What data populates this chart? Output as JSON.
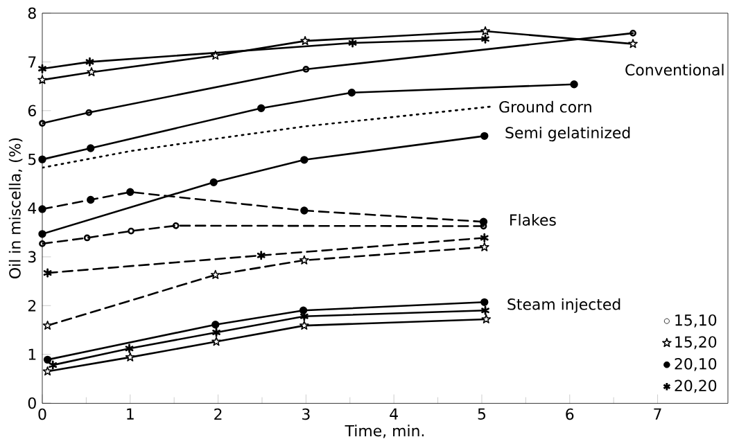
{
  "chart_data": {
    "type": "line",
    "xlabel": "Time, min.",
    "ylabel": "Oil in miscella, (%)",
    "xlim": [
      0,
      7.8
    ],
    "ylim": [
      0,
      8
    ],
    "xticks": [
      0,
      1,
      2,
      3,
      4,
      5,
      6,
      7
    ],
    "yticks": [
      0,
      1,
      2,
      3,
      4,
      5,
      6,
      7,
      8
    ],
    "grid": false,
    "legend": "bottom right",
    "series": [
      {
        "name": "15,10",
        "color": "#000000",
        "line_style": "solid",
        "marker": "diamond",
        "x": [
          0,
          0.53,
          3.0,
          6.72
        ],
        "values": [
          5.74,
          5.96,
          6.85,
          7.59
        ]
      },
      {
        "name": "15,20",
        "color": "#000000",
        "line_style": "solid",
        "marker": "star",
        "x": [
          0,
          0.56,
          1.97,
          2.99,
          5.04,
          6.72
        ],
        "values": [
          6.63,
          6.79,
          7.13,
          7.43,
          7.63,
          7.37
        ]
      },
      {
        "name": "20,10",
        "color": "#000000",
        "line_style": "solid",
        "marker": "circle",
        "x": [
          0,
          0.55,
          2.49,
          3.52,
          6.05
        ],
        "values": [
          5.0,
          5.23,
          6.05,
          6.37,
          6.54
        ]
      },
      {
        "name": "20,20",
        "color": "#000000",
        "line_style": "solid",
        "marker": "cross",
        "x": [
          0,
          0.54,
          3.53,
          5.04
        ],
        "values": [
          6.86,
          7.0,
          7.39,
          7.47
        ]
      },
      {
        "color": "#000000",
        "line_style": "dotted",
        "marker": "none",
        "x": [
          0,
          1,
          2,
          3,
          4,
          5.09
        ],
        "values": [
          4.83,
          5.17,
          5.43,
          5.68,
          5.87,
          6.08
        ]
      },
      {
        "color": "#000000",
        "line_style": "solid",
        "marker": "circle",
        "x": [
          0,
          1.95,
          2.98,
          5.03
        ],
        "values": [
          3.47,
          4.53,
          4.99,
          5.48
        ]
      },
      {
        "color": "#000000",
        "line_style": "dashed",
        "marker": "circle",
        "x": [
          0,
          0.55,
          1.0,
          2.98,
          5.02
        ],
        "values": [
          3.98,
          4.17,
          4.33,
          3.95,
          3.72
        ]
      },
      {
        "color": "#000000",
        "line_style": "dashed",
        "marker": "diamond",
        "x": [
          0,
          0.51,
          1.01,
          1.52,
          5.02
        ],
        "values": [
          3.27,
          3.39,
          3.53,
          3.64,
          3.63
        ]
      },
      {
        "color": "#000000",
        "line_style": "dashed",
        "marker": "cross",
        "x": [
          0.06,
          2.49,
          5.03
        ],
        "values": [
          2.67,
          3.03,
          3.39
        ]
      },
      {
        "color": "#000000",
        "line_style": "dashed",
        "marker": "star",
        "x": [
          0.06,
          1.97,
          2.98,
          5.03
        ],
        "values": [
          1.59,
          2.63,
          2.93,
          3.2
        ]
      },
      {
        "color": "#000000",
        "line_style": "solid",
        "marker": "circle",
        "x": [
          0.06,
          1.97,
          2.97,
          5.03
        ],
        "values": [
          0.89,
          1.61,
          1.9,
          2.07
        ]
      },
      {
        "color": "#000000",
        "line_style": "solid",
        "marker": "cross",
        "x": [
          0.12,
          0.99,
          1.98,
          2.98,
          5.04
        ],
        "values": [
          0.78,
          1.12,
          1.45,
          1.78,
          1.9
        ]
      },
      {
        "color": "#000000",
        "line_style": "solid",
        "marker": "star",
        "x": [
          0.06,
          1.0,
          1.98,
          2.98,
          5.05
        ],
        "values": [
          0.65,
          0.94,
          1.26,
          1.59,
          1.72
        ]
      }
    ],
    "annotations": [
      "Conventional",
      "Ground corn",
      "Semi gelatinized",
      "Flakes",
      "Steam injected"
    ]
  }
}
